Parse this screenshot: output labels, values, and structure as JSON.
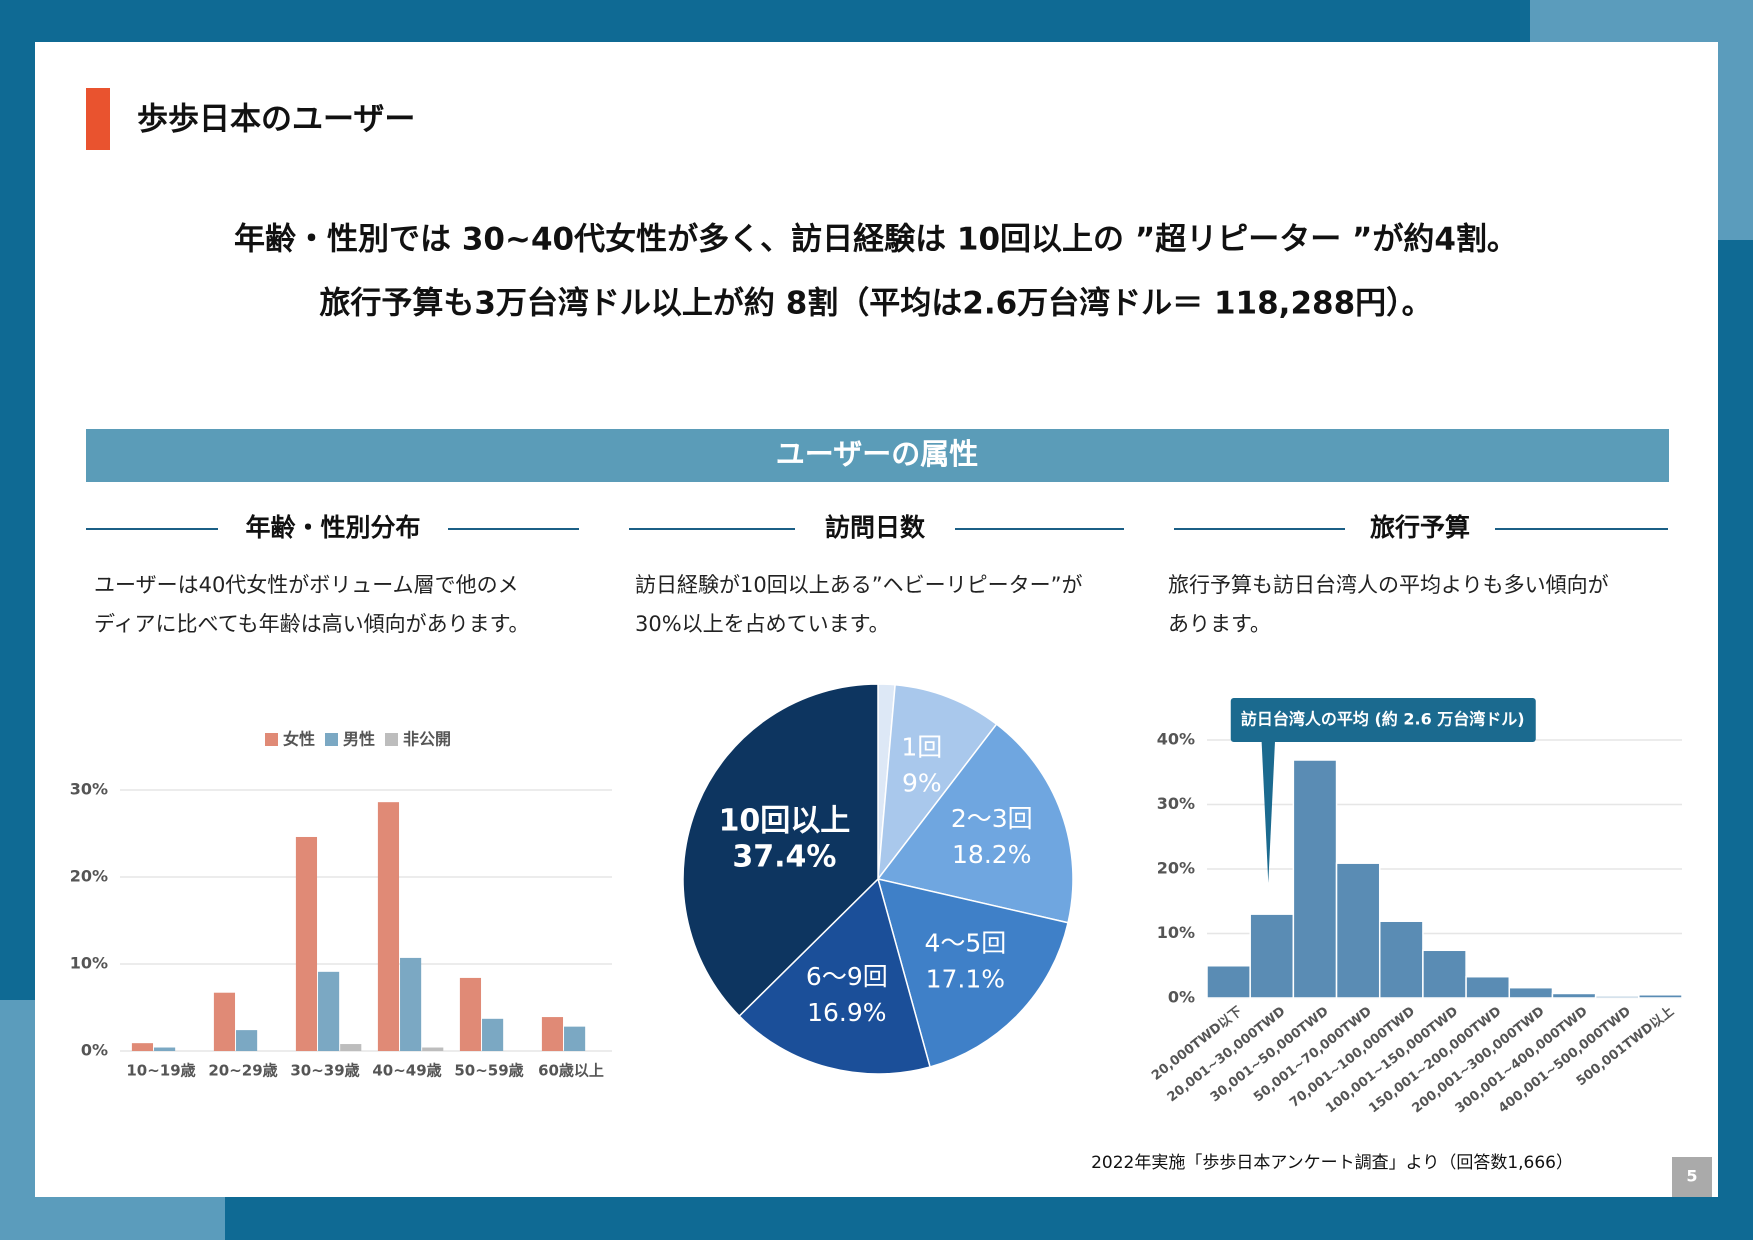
{
  "header": {
    "title": "歩歩日本のユーザー",
    "headline": [
      "年齢・性別では 30~40代女性が多く、訪日経験は 10回以上の ”超リピーター ”が約4割。",
      "旅行予算も3万台湾ドル以上が約 8割（平均は2.6万台湾ドル＝ 118,288円）。"
    ]
  },
  "section_title": "ユーザーの属性",
  "columns": [
    {
      "heading": "年齢・性別分布",
      "description": [
        "ユーザーは40代女性がボリューム層で他のメ",
        "ディアに比べても年齢は高い傾向があります。"
      ]
    },
    {
      "heading": "訪問日数",
      "description": [
        "訪日経験が10回以上ある”ヘビーリピーター”が",
        "30%以上を占めています。"
      ]
    },
    {
      "heading": "旅行予算",
      "description": [
        "旅行予算も訪日台湾人の平均よりも多い傾向が",
        "あります。"
      ]
    }
  ],
  "chart_data": [
    {
      "type": "bar",
      "categories": [
        "10~19歳",
        "20~29歳",
        "30~39歳",
        "40~49歳",
        "50~59歳",
        "60歳以上"
      ],
      "series": [
        {
          "name": "女性",
          "color": "#e08a76",
          "values": [
            0.9,
            6.7,
            24.6,
            28.6,
            8.4,
            3.9
          ]
        },
        {
          "name": "男性",
          "color": "#7ba8c3",
          "values": [
            0.4,
            2.4,
            9.1,
            10.7,
            3.7,
            2.8
          ]
        },
        {
          "name": "非公開",
          "color": "#bdbdbd",
          "values": [
            0,
            0,
            0.8,
            0.4,
            0,
            0
          ]
        }
      ],
      "ylim": [
        0,
        30
      ],
      "yticks": [
        {
          "value": 0,
          "label": "0%"
        },
        {
          "value": 10,
          "label": "10%"
        },
        {
          "value": 20,
          "label": "20%"
        },
        {
          "value": 30,
          "label": "30%"
        }
      ],
      "grid": true,
      "legend": "top"
    },
    {
      "type": "pie",
      "categories": [
        null,
        "1回",
        "2～3回",
        "4～5回",
        "6～9回",
        "10回以上"
      ],
      "values": [
        1.4,
        9,
        18.2,
        17.1,
        16.9,
        37.4
      ],
      "value_labels": [
        null,
        "9%",
        "18.2%",
        "17.1%",
        "16.9%",
        "37.4%"
      ],
      "colors": [
        "#dde8f6",
        "#a9c8ec",
        "#6fa6e0",
        "#3f80c8",
        "#1b4f99",
        "#0d3560"
      ]
    },
    {
      "type": "bar",
      "categories": [
        "20,000TWD以下",
        "20,001~30,000TWD",
        "30,001~50,000TWD",
        "50,001~70,000TWD",
        "70,001~100,000TWD",
        "100,001~150,000TWD",
        "150,001~200,000TWD",
        "200,001~300,000TWD",
        "300,001~400,000TWD",
        "400,001~500,000TWD",
        "500,001TWD以上"
      ],
      "values": [
        5.0,
        13.0,
        36.9,
        20.9,
        11.9,
        7.4,
        3.3,
        1.6,
        0.7,
        0.3,
        0.5
      ],
      "color": "#5a8cb4",
      "ylim": [
        0,
        40
      ],
      "yticks": [
        {
          "value": 0,
          "label": "0%"
        },
        {
          "value": 10,
          "label": "10%"
        },
        {
          "value": 20,
          "label": "20%"
        },
        {
          "value": 30,
          "label": "30%"
        },
        {
          "value": 40,
          "label": "40%"
        }
      ],
      "grid": true,
      "annotation": "訪日台湾人の平均 (約 2.6 万台湾ドル)"
    }
  ],
  "footnote": "2022年実施「歩歩日本アンケート調査」より（回答数1,666）",
  "page_number": "5"
}
